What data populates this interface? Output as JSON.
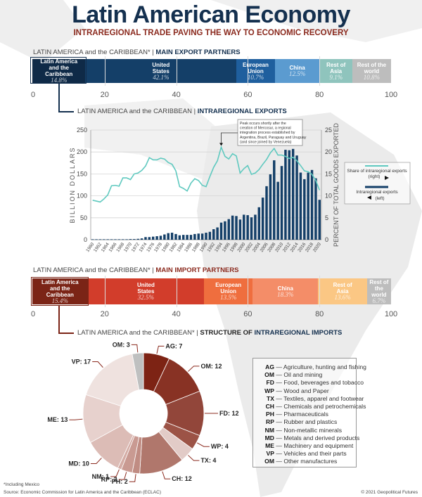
{
  "title": "Latin American Economy",
  "subtitle": "INTRAREGIONAL TRADE PAVING THE WAY TO ECONOMIC RECOVERY",
  "exports_header": {
    "prefix": "LATIN AMERICA and the CARIBBEAN* | ",
    "bold": "MAIN EXPORT PARTNERS"
  },
  "intra_exports_header": {
    "prefix": "LATIN AMERICA and the CARIBBEAN | ",
    "bold": "INTRAREGIONAL EXPORTS"
  },
  "imports_header": {
    "prefix": "LATIN AMERICA and the CARIBBEAN* | ",
    "bold": "MAIN IMPORT PARTNERS"
  },
  "intra_imports_header": {
    "prefix": "LATIN AMERICA and the CARIBBEAN* | ",
    "bold1": "STRUCTURE OF ",
    "bold2": "INTRAREGIONAL IMPORTS"
  },
  "footnote": "*Including Mexico",
  "source": "Source: Economic Commission for Latin America and the Caribbean (ECLAC)",
  "copyright": "© 2021 Geopolitical Futures",
  "chart_data": [
    {
      "type": "bar",
      "orientation": "horizontal-stacked",
      "xlim": [
        0,
        100
      ],
      "ticks": [
        "0",
        "20",
        "40",
        "60",
        "80",
        "100"
      ],
      "categories": [
        "Latin America and the Caribbean",
        "United States",
        "European Union",
        "China",
        "Rest of Asia",
        "Rest of the world"
      ],
      "labels": [
        "14.8%",
        "42.1%",
        "10.7%",
        "12.5%",
        "9.1%",
        "10.8%"
      ],
      "values": [
        14.8,
        42.1,
        10.7,
        12.5,
        9.1,
        10.8
      ],
      "colors": [
        "#0f2a47",
        "#143f68",
        "#1f5f9e",
        "#5b9bd0",
        "#8fc4bd",
        "#bdbdbd"
      ]
    },
    {
      "type": "bar+line",
      "x": [
        1960,
        1961,
        1962,
        1963,
        1964,
        1965,
        1966,
        1967,
        1968,
        1969,
        1970,
        1971,
        1972,
        1973,
        1974,
        1975,
        1976,
        1977,
        1978,
        1979,
        1980,
        1981,
        1982,
        1983,
        1984,
        1985,
        1986,
        1987,
        1988,
        1989,
        1990,
        1991,
        1992,
        1993,
        1994,
        1995,
        1996,
        1997,
        1998,
        1999,
        2000,
        2001,
        2002,
        2003,
        2004,
        2005,
        2006,
        2007,
        2008,
        2009,
        2010,
        2011,
        2012,
        2013,
        2014,
        2015,
        2016,
        2017,
        2018,
        2019,
        2020
      ],
      "ylabel": "BILLION DOLLARS",
      "y2label": "PERCENT OF TOTAL GOODS EXPORTED",
      "ylim": [
        0,
        250
      ],
      "y2lim": [
        0,
        25
      ],
      "yticks": [
        "0",
        "50",
        "100",
        "150",
        "200",
        "250"
      ],
      "y2ticks": [
        "0",
        "5",
        "10",
        "15",
        "20",
        "25"
      ],
      "grid": true,
      "series": [
        {
          "name": "Intraregional exports",
          "legend": "(left)",
          "axis": "left",
          "kind": "bar",
          "color": "#143f68",
          "values": [
            1,
            1,
            1,
            1,
            1,
            1,
            1,
            1,
            1,
            1,
            1.5,
            1.5,
            2,
            3,
            6,
            6,
            7,
            8,
            9,
            12,
            15,
            16,
            13,
            10,
            11,
            11,
            11,
            13,
            14,
            14,
            16,
            18,
            24,
            28,
            39,
            42,
            47,
            55,
            54,
            46,
            57,
            56,
            51,
            57,
            74,
            96,
            122,
            149,
            181,
            132,
            168,
            205,
            204,
            207,
            192,
            153,
            138,
            153,
            159,
            140,
            91
          ]
        },
        {
          "name": "Share of intraregional exports",
          "legend": "(right)",
          "axis": "right",
          "kind": "line",
          "color": "#5fc9bf",
          "values": [
            9.0,
            8.8,
            8.6,
            9.3,
            10.2,
            12.3,
            12.4,
            12.2,
            14.1,
            14.1,
            13.7,
            15.0,
            15.2,
            15.8,
            16.8,
            18.7,
            18.2,
            18.2,
            18.6,
            18.4,
            17.6,
            17.2,
            15.7,
            12.1,
            11.7,
            11.1,
            12.9,
            13.9,
            13.5,
            12.4,
            12.1,
            14.4,
            16.5,
            18.0,
            21.1,
            19.0,
            18.4,
            19.6,
            19.1,
            15.2,
            16.2,
            16.9,
            14.9,
            15.2,
            16.0,
            17.2,
            18.3,
            19.8,
            20.8,
            19.3,
            19.3,
            19.0,
            18.5,
            18.8,
            18.0,
            16.9,
            15.7,
            15.5,
            14.9,
            13.5,
            11.3
          ]
        }
      ],
      "annotation": {
        "x": 1994,
        "text": [
          "Peak occurs shortly after the",
          "creation of Mercosur, a regional",
          "integration process established by",
          "Argentina, Brazil, Paraguay and Uruguay",
          "(and since joined by Venezuela)"
        ]
      }
    },
    {
      "type": "bar",
      "orientation": "horizontal-stacked",
      "xlim": [
        0,
        100
      ],
      "ticks": [
        "0",
        "20",
        "40",
        "60",
        "80",
        "100"
      ],
      "categories": [
        "Latin America and the Caribbean",
        "United States",
        "European Union",
        "China",
        "Rest of Asia",
        "Rest of the world"
      ],
      "labels": [
        "15.4%",
        "32.5%",
        "13.5%",
        "18.3%",
        "13.6%",
        "6.7%"
      ],
      "values": [
        15.4,
        32.5,
        13.5,
        18.3,
        13.6,
        6.7
      ],
      "colors": [
        "#7b2416",
        "#d23d2b",
        "#ef6e3e",
        "#f48d68",
        "#fbc784",
        "#bdbdbd"
      ]
    },
    {
      "type": "pie",
      "donut": true,
      "slices": [
        {
          "code": "AG",
          "value": 7,
          "label": "AG: 7",
          "desc": "Agriculture, hunting and fishing",
          "color": "#7d2314"
        },
        {
          "code": "OM",
          "value": 12,
          "label": "OM: 12",
          "desc": "Oil and mining",
          "color": "#883224"
        },
        {
          "code": "FD",
          "value": 12,
          "label": "FD: 12",
          "desc": "Food, beverages and tobacco",
          "color": "#92463a"
        },
        {
          "code": "WP",
          "value": 4,
          "label": "WP: 4",
          "desc": "Wood and Paper",
          "color": "#9c5346"
        },
        {
          "code": "TX",
          "value": 4,
          "label": "TX: 4",
          "desc": "Textiles, apparel and footwear",
          "color": "#a5605353"
        },
        {
          "code": "CH",
          "value": 12,
          "label": "CH: 12",
          "desc": "Chemicals and petrochemicals",
          "color": "#b0776c"
        },
        {
          "code": "PH",
          "value": 2,
          "label": "PH: 2",
          "desc": "Pharmaceuticals",
          "color": "#c08c83"
        },
        {
          "code": "RP",
          "value": 3,
          "label": "RP: 3",
          "desc": "Rubber and plastics",
          "color": "#c99a92"
        },
        {
          "code": "NM",
          "value": 1,
          "label": "NM: 1",
          "desc": "Non-metallic minerals",
          "color": "#d4aca5"
        },
        {
          "code": "MD",
          "value": 10,
          "label": "MD: 10",
          "desc": "Metals and derived products",
          "color": "#dcbcb6"
        },
        {
          "code": "ME",
          "value": 13,
          "label": "ME: 13",
          "desc": "Machinery and equipment",
          "color": "#e7d1cd"
        },
        {
          "code": "VP",
          "value": 17,
          "label": "VP: 17",
          "desc": "Vehicles and their parts",
          "color": "#efe2df"
        },
        {
          "code": "OM",
          "value": 3,
          "label": "OM: 3",
          "desc": "Other manufactures",
          "color": "#bfc0c0"
        }
      ]
    }
  ]
}
